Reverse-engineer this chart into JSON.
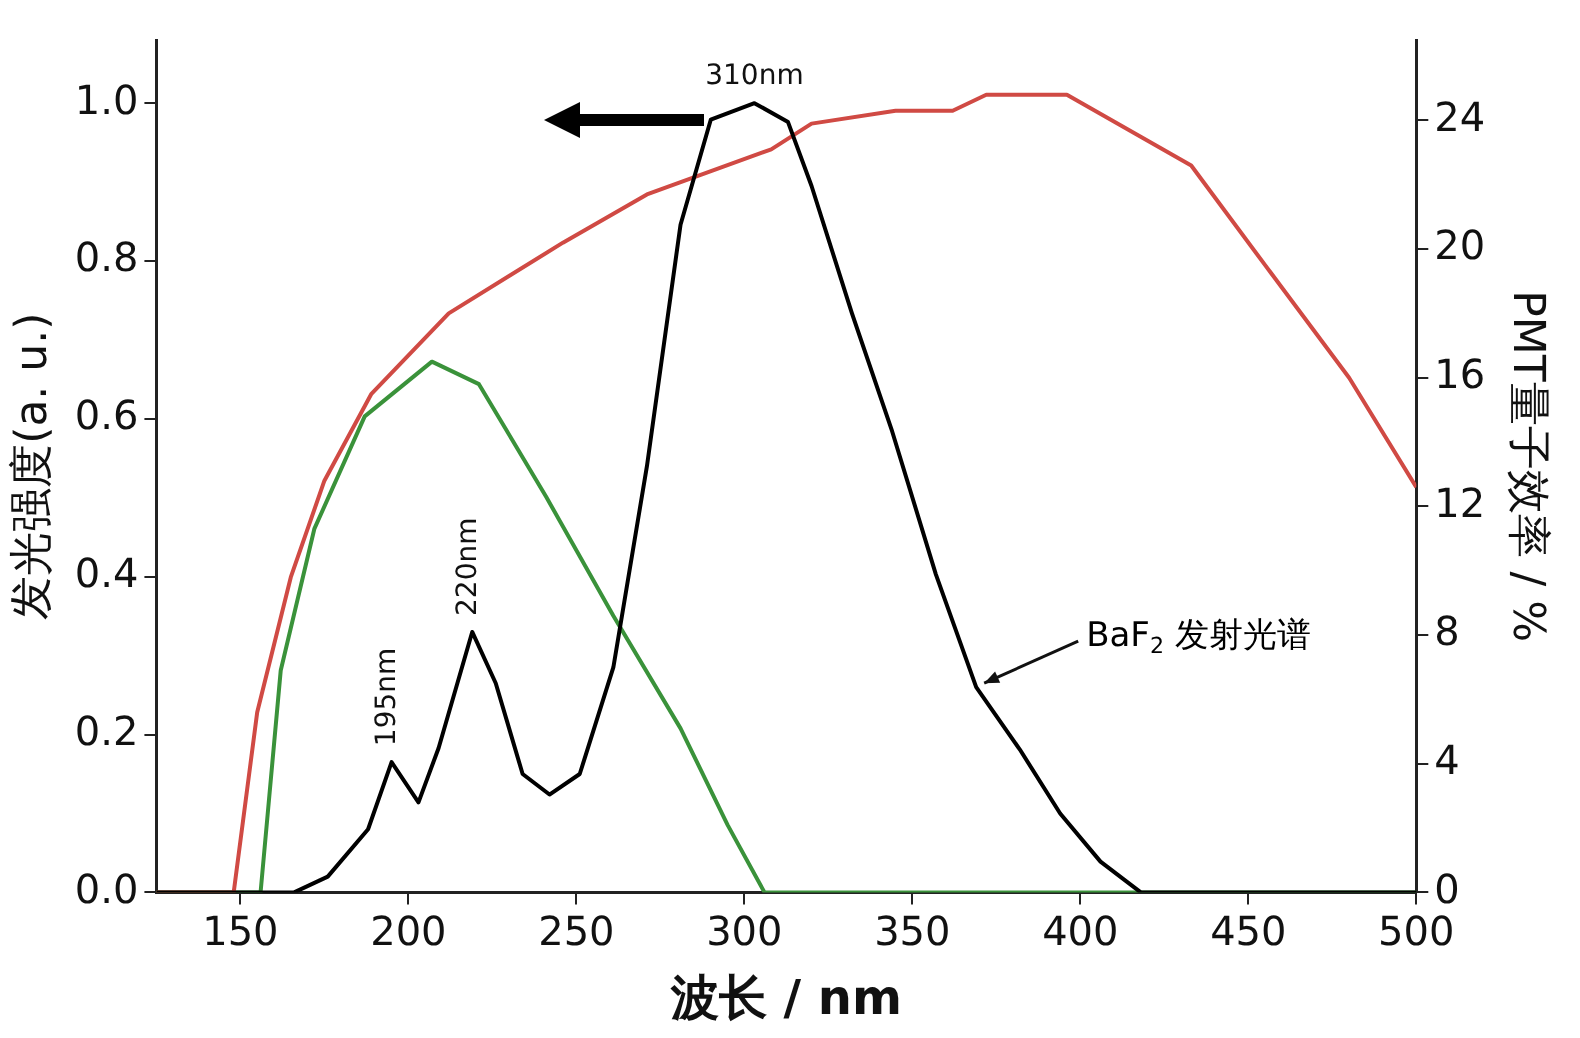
{
  "chart_data": {
    "type": "line",
    "xlabel": "波长 / nm",
    "ylabel": "发光强度(a. u.)",
    "y2label": "PMT量子效率 / %",
    "xlim": [
      125,
      500
    ],
    "xticks": [
      150,
      200,
      250,
      300,
      350,
      400,
      450,
      500
    ],
    "ylim": [
      0,
      1.08
    ],
    "yticks": [
      {
        "value": 0,
        "label": "0.0"
      },
      {
        "value": 0.2,
        "label": "0.2"
      },
      {
        "value": 0.4,
        "label": "0.4"
      },
      {
        "value": 0.6,
        "label": "0.6"
      },
      {
        "value": 0.8,
        "label": "0.8"
      },
      {
        "value": 1,
        "label": "1.0"
      }
    ],
    "y2lim": [
      0,
      26.5
    ],
    "y2ticks": [
      0,
      4,
      8,
      12,
      16,
      20,
      24
    ],
    "grid": false,
    "legend": false,
    "marker": "none",
    "line_style": "solid",
    "series": [
      {
        "name": "BaF$_{2}$ 发射光谱",
        "color": "#000000",
        "x": [
          125,
          166,
          176,
          188,
          195,
          203,
          209,
          219,
          226,
          234,
          242,
          251,
          261,
          271,
          281,
          290,
          303,
          313,
          320,
          332,
          344,
          357,
          369,
          382,
          394,
          406,
          418,
          500
        ],
        "values": [
          0,
          0,
          0.02,
          0.08,
          0.165,
          0.114,
          0.183,
          0.33,
          0.265,
          0.15,
          0.124,
          0.15,
          0.285,
          0.54,
          0.846,
          0.979,
          1.0,
          0.976,
          0.895,
          0.734,
          0.584,
          0.403,
          0.26,
          0.181,
          0.1,
          0.039,
          0,
          0
        ]
      },
      {
        "color": "#d04a44",
        "axis": "y2",
        "x": [
          125,
          148,
          155,
          165,
          175,
          189,
          212,
          246,
          271,
          308,
          320,
          345,
          362,
          372,
          396,
          433,
          455,
          480,
          500
        ],
        "values": [
          0,
          0,
          5.6,
          9.8,
          12.8,
          15.5,
          18.0,
          20.2,
          21.7,
          23.1,
          23.9,
          24.3,
          24.3,
          24.8,
          24.8,
          22.6,
          19.5,
          16.0,
          12.6
        ]
      },
      {
        "color": "#3a923a",
        "axis": "y2",
        "x": [
          125,
          156,
          162,
          172,
          187,
          207,
          221,
          241,
          261,
          281,
          295,
          306,
          500
        ],
        "values": [
          0,
          0,
          6.9,
          11.3,
          14.8,
          16.5,
          15.8,
          12.3,
          8.6,
          5.1,
          2.1,
          0,
          0
        ]
      }
    ],
    "annotations": [
      {
        "text": "310nm",
        "x": 303,
        "y": 1.0
      },
      {
        "text": "220nm",
        "x": 219,
        "y": 0.33
      },
      {
        "text": "195nm",
        "x": 195,
        "y": 0.165
      }
    ]
  }
}
